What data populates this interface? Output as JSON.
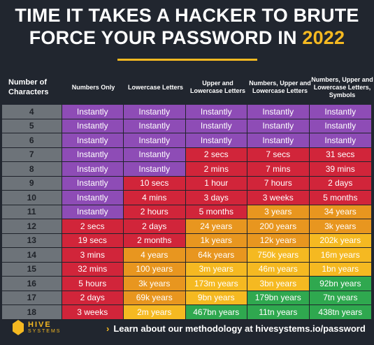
{
  "title": {
    "line1": "TIME IT TAKES A HACKER TO BRUTE",
    "line2a": "FORCE YOUR PASSWORD IN ",
    "year": "2022"
  },
  "colors": {
    "purple": "#8e4cb6",
    "red": "#d1253a",
    "orange": "#e8961f",
    "yellow": "#f5b921",
    "green": "#2fa84f",
    "gray": "#6d7379"
  },
  "headers": [
    "Number of Characters",
    "Numbers Only",
    "Lowercase Letters",
    "Upper and Lowercase Letters",
    "Numbers, Upper and Lowercase Letters",
    "Numbers, Upper and Lowercase Letters, Symbols"
  ],
  "rows": [
    {
      "n": "4",
      "cells": [
        [
          "Instantly",
          "purple"
        ],
        [
          "Instantly",
          "purple"
        ],
        [
          "Instantly",
          "purple"
        ],
        [
          "Instantly",
          "purple"
        ],
        [
          "Instantly",
          "purple"
        ]
      ]
    },
    {
      "n": "5",
      "cells": [
        [
          "Instantly",
          "purple"
        ],
        [
          "Instantly",
          "purple"
        ],
        [
          "Instantly",
          "purple"
        ],
        [
          "Instantly",
          "purple"
        ],
        [
          "Instantly",
          "purple"
        ]
      ]
    },
    {
      "n": "6",
      "cells": [
        [
          "Instantly",
          "purple"
        ],
        [
          "Instantly",
          "purple"
        ],
        [
          "Instantly",
          "purple"
        ],
        [
          "Instantly",
          "purple"
        ],
        [
          "Instantly",
          "purple"
        ]
      ]
    },
    {
      "n": "7",
      "cells": [
        [
          "Instantly",
          "purple"
        ],
        [
          "Instantly",
          "purple"
        ],
        [
          "2 secs",
          "red"
        ],
        [
          "7 secs",
          "red"
        ],
        [
          "31 secs",
          "red"
        ]
      ]
    },
    {
      "n": "8",
      "cells": [
        [
          "Instantly",
          "purple"
        ],
        [
          "Instantly",
          "purple"
        ],
        [
          "2 mins",
          "red"
        ],
        [
          "7 mins",
          "red"
        ],
        [
          "39 mins",
          "red"
        ]
      ]
    },
    {
      "n": "9",
      "cells": [
        [
          "Instantly",
          "purple"
        ],
        [
          "10 secs",
          "red"
        ],
        [
          "1 hour",
          "red"
        ],
        [
          "7 hours",
          "red"
        ],
        [
          "2 days",
          "red"
        ]
      ]
    },
    {
      "n": "10",
      "cells": [
        [
          "Instantly",
          "purple"
        ],
        [
          "4 mins",
          "red"
        ],
        [
          "3 days",
          "red"
        ],
        [
          "3 weeks",
          "red"
        ],
        [
          "5 months",
          "red"
        ]
      ]
    },
    {
      "n": "11",
      "cells": [
        [
          "Instantly",
          "purple"
        ],
        [
          "2 hours",
          "red"
        ],
        [
          "5 months",
          "red"
        ],
        [
          "3 years",
          "orange"
        ],
        [
          "34 years",
          "orange"
        ]
      ]
    },
    {
      "n": "12",
      "cells": [
        [
          "2 secs",
          "red"
        ],
        [
          "2 days",
          "red"
        ],
        [
          "24 years",
          "orange"
        ],
        [
          "200 years",
          "orange"
        ],
        [
          "3k years",
          "orange"
        ]
      ]
    },
    {
      "n": "13",
      "cells": [
        [
          "19 secs",
          "red"
        ],
        [
          "2 months",
          "red"
        ],
        [
          "1k years",
          "orange"
        ],
        [
          "12k years",
          "orange"
        ],
        [
          "202k years",
          "yellow"
        ]
      ]
    },
    {
      "n": "14",
      "cells": [
        [
          "3 mins",
          "red"
        ],
        [
          "4 years",
          "orange"
        ],
        [
          "64k years",
          "orange"
        ],
        [
          "750k years",
          "yellow"
        ],
        [
          "16m years",
          "yellow"
        ]
      ]
    },
    {
      "n": "15",
      "cells": [
        [
          "32 mins",
          "red"
        ],
        [
          "100 years",
          "orange"
        ],
        [
          "3m years",
          "yellow"
        ],
        [
          "46m years",
          "yellow"
        ],
        [
          "1bn years",
          "yellow"
        ]
      ]
    },
    {
      "n": "16",
      "cells": [
        [
          "5 hours",
          "red"
        ],
        [
          "3k years",
          "orange"
        ],
        [
          "173m years",
          "yellow"
        ],
        [
          "3bn years",
          "yellow"
        ],
        [
          "92bn years",
          "green"
        ]
      ]
    },
    {
      "n": "17",
      "cells": [
        [
          "2 days",
          "red"
        ],
        [
          "69k years",
          "orange"
        ],
        [
          "9bn years",
          "yellow"
        ],
        [
          "179bn years",
          "green"
        ],
        [
          "7tn years",
          "green"
        ]
      ]
    },
    {
      "n": "18",
      "cells": [
        [
          "3 weeks",
          "red"
        ],
        [
          "2m years",
          "yellow"
        ],
        [
          "467bn years",
          "green"
        ],
        [
          "11tn years",
          "green"
        ],
        [
          "438tn years",
          "green"
        ]
      ]
    }
  ],
  "footer": {
    "logo_name": "HIVE",
    "logo_sub": "SYSTEMS",
    "link_text": "Learn about our methodology at hivesystems.io/password"
  }
}
